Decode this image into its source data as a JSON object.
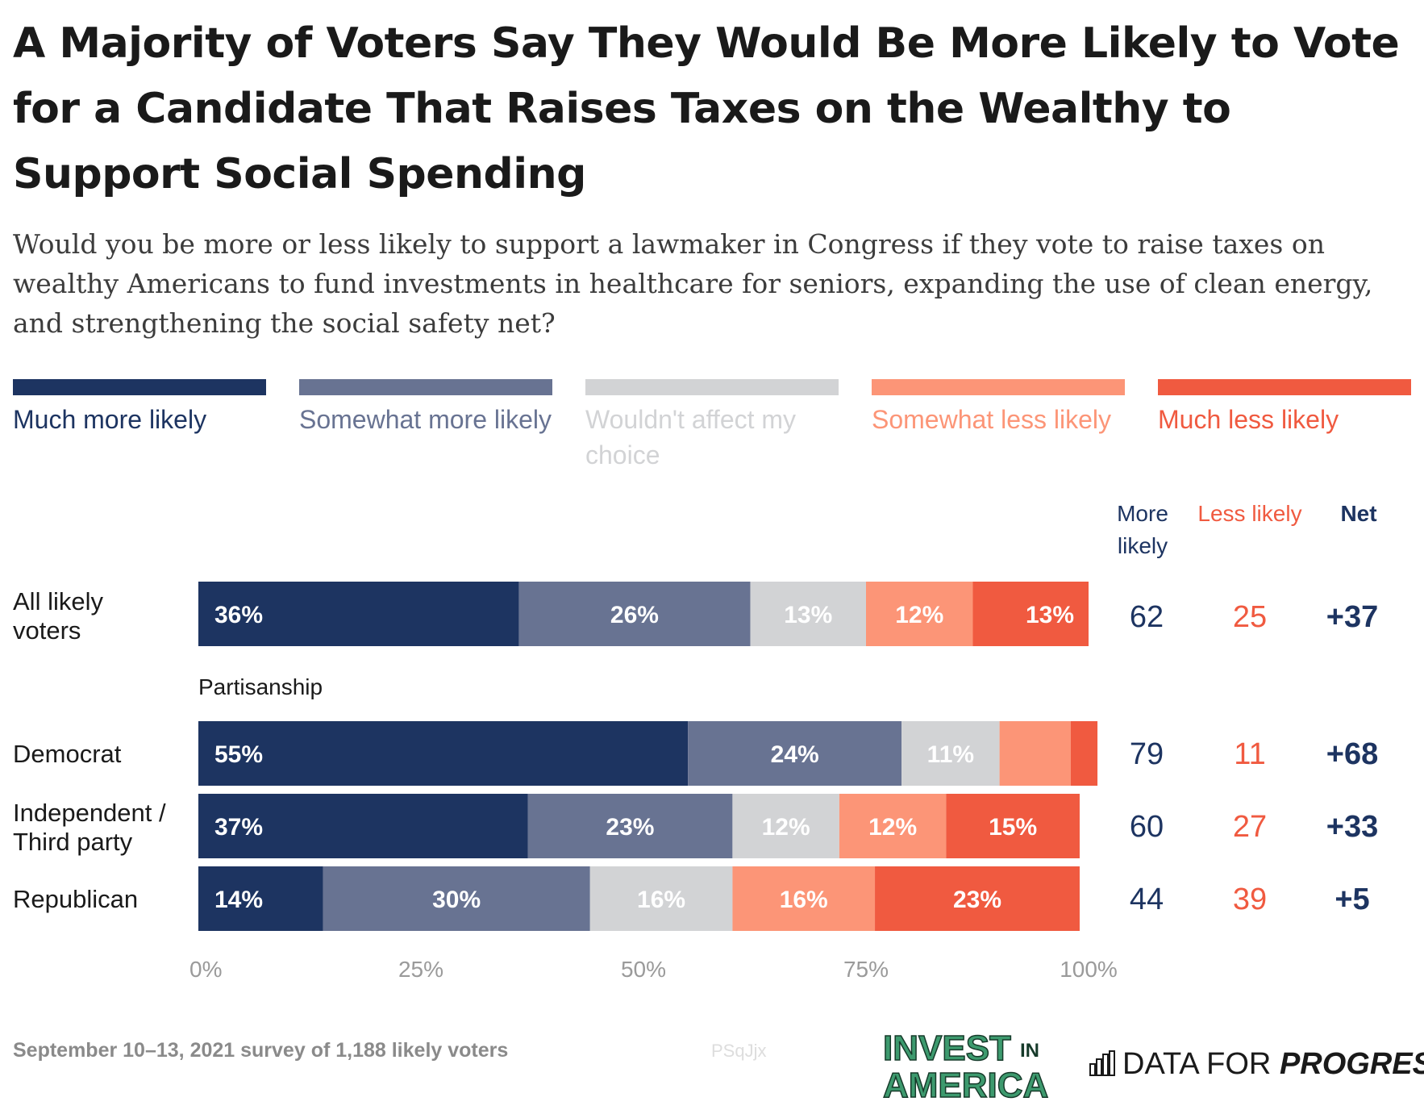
{
  "title": "A Majority of Voters Say They Would Be More Likely to Vote for a Candidate That Raises Taxes on the Wealthy to Support Social Spending",
  "subtitle": "Would you be more or less likely to support a lawmaker in Congress if they vote to raise taxes on wealthy Americans to fund investments in healthcare for seniors, expanding the use of clean energy, and strengthening the social safety net?",
  "legend": [
    {
      "label": "Much more likely",
      "color": "#1d3461"
    },
    {
      "label": "Somewhat more likely",
      "color": "#687392"
    },
    {
      "label": "Wouldn't affect my choice",
      "color": "#d2d3d5"
    },
    {
      "label": "Somewhat less likely",
      "color": "#fc9577"
    },
    {
      "label": "Much less likely",
      "color": "#f05a40"
    }
  ],
  "columns": {
    "more": "More likely",
    "less": "Less likely",
    "net": "Net"
  },
  "group_label": "Partisanship",
  "rows": [
    {
      "label": "All likely voters",
      "more": "62",
      "less": "25",
      "net": "+37"
    },
    {
      "label": "Democrat",
      "more": "79",
      "less": "11",
      "net": "+68"
    },
    {
      "label": "Independent / Third party",
      "more": "60",
      "less": "27",
      "net": "+33"
    },
    {
      "label": "Republican",
      "more": "44",
      "less": "39",
      "net": "+5"
    }
  ],
  "chart_data": {
    "type": "bar",
    "orientation": "horizontal",
    "stacked": true,
    "title": "A Majority of Voters Say They Would Be More Likely to Vote for a Candidate That Raises Taxes on the Wealthy to Support Social Spending",
    "categories": [
      "All likely voters",
      "Democrat",
      "Independent / Third party",
      "Republican"
    ],
    "series": [
      {
        "name": "Much more likely",
        "values": [
          36,
          55,
          37,
          14
        ],
        "labels": [
          "36%",
          "55%",
          "37%",
          "14%"
        ]
      },
      {
        "name": "Somewhat more likely",
        "values": [
          26,
          24,
          23,
          30
        ],
        "labels": [
          "26%",
          "24%",
          "23%",
          "30%"
        ]
      },
      {
        "name": "Wouldn't affect my choice",
        "values": [
          13,
          11,
          12,
          16
        ],
        "labels": [
          "13%",
          "11%",
          "12%",
          "16%"
        ]
      },
      {
        "name": "Somewhat less likely",
        "values": [
          12,
          8,
          12,
          16
        ],
        "labels": [
          "12%",
          "",
          "12%",
          "16%"
        ]
      },
      {
        "name": "Much less likely",
        "values": [
          13,
          3,
          15,
          23
        ],
        "labels": [
          "13%",
          "",
          "15%",
          "23%"
        ]
      }
    ],
    "xlim": [
      0,
      100
    ],
    "x_ticks": [
      "0%",
      "25%",
      "50%",
      "75%",
      "100%"
    ],
    "xlabel": "",
    "ylabel": ""
  },
  "footer": {
    "note": "September 10–13, 2021 survey of 1,188 likely voters",
    "code": "PSqJjx",
    "logo_invest_line1": "INVEST",
    "logo_invest_in": "IN",
    "logo_invest_line2": "AMERICA",
    "logo_dfp_plain": "DATA FOR",
    "logo_dfp_bold": "PROGRESS"
  }
}
